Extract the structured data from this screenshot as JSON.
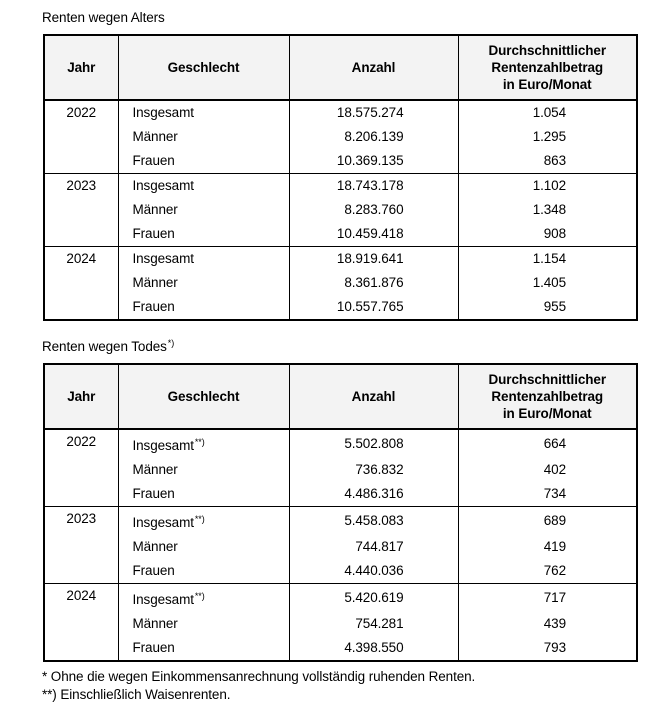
{
  "tables": [
    {
      "title": "Renten wegen Alters",
      "title_marker": "",
      "headers": {
        "jahr": "Jahr",
        "geschlecht": "Geschlecht",
        "anzahl": "Anzahl",
        "betrag": "Durchschnittlicher\nRentenzahlbetrag\nin Euro/Monat"
      },
      "groups": [
        {
          "jahr": "2022",
          "rows": [
            {
              "geschlecht": "Insgesamt",
              "marker": "",
              "anzahl": "18.575.274",
              "betrag": "1.054"
            },
            {
              "geschlecht": "Männer",
              "marker": "",
              "anzahl": "8.206.139",
              "betrag": "1.295"
            },
            {
              "geschlecht": "Frauen",
              "marker": "",
              "anzahl": "10.369.135",
              "betrag": "863"
            }
          ]
        },
        {
          "jahr": "2023",
          "rows": [
            {
              "geschlecht": "Insgesamt",
              "marker": "",
              "anzahl": "18.743.178",
              "betrag": "1.102"
            },
            {
              "geschlecht": "Männer",
              "marker": "",
              "anzahl": "8.283.760",
              "betrag": "1.348"
            },
            {
              "geschlecht": "Frauen",
              "marker": "",
              "anzahl": "10.459.418",
              "betrag": "908"
            }
          ]
        },
        {
          "jahr": "2024",
          "rows": [
            {
              "geschlecht": "Insgesamt",
              "marker": "",
              "anzahl": "18.919.641",
              "betrag": "1.154"
            },
            {
              "geschlecht": "Männer",
              "marker": "",
              "anzahl": "8.361.876",
              "betrag": "1.405"
            },
            {
              "geschlecht": "Frauen",
              "marker": "",
              "anzahl": "10.557.765",
              "betrag": "955"
            }
          ]
        }
      ]
    },
    {
      "title": "Renten wegen Todes",
      "title_marker": "*)",
      "headers": {
        "jahr": "Jahr",
        "geschlecht": "Geschlecht",
        "anzahl": "Anzahl",
        "betrag": "Durchschnittlicher\nRentenzahlbetrag\nin Euro/Monat"
      },
      "groups": [
        {
          "jahr": "2022",
          "rows": [
            {
              "geschlecht": "Insgesamt",
              "marker": "**)",
              "anzahl": "5.502.808",
              "betrag": "664"
            },
            {
              "geschlecht": "Männer",
              "marker": "",
              "anzahl": "736.832",
              "betrag": "402"
            },
            {
              "geschlecht": "Frauen",
              "marker": "",
              "anzahl": "4.486.316",
              "betrag": "734"
            }
          ]
        },
        {
          "jahr": "2023",
          "rows": [
            {
              "geschlecht": "Insgesamt",
              "marker": "**)",
              "anzahl": "5.458.083",
              "betrag": "689"
            },
            {
              "geschlecht": "Männer",
              "marker": "",
              "anzahl": "744.817",
              "betrag": "419"
            },
            {
              "geschlecht": "Frauen",
              "marker": "",
              "anzahl": "4.440.036",
              "betrag": "762"
            }
          ]
        },
        {
          "jahr": "2024",
          "rows": [
            {
              "geschlecht": "Insgesamt",
              "marker": "**)",
              "anzahl": "5.420.619",
              "betrag": "717"
            },
            {
              "geschlecht": "Männer",
              "marker": "",
              "anzahl": "754.281",
              "betrag": "439"
            },
            {
              "geschlecht": "Frauen",
              "marker": "",
              "anzahl": "4.398.550",
              "betrag": "793"
            }
          ]
        }
      ]
    }
  ],
  "footnotes": [
    "* Ohne die wegen Einkommensanrechnung vollständig ruhenden Renten.",
    "**) Einschließlich Waisenrenten."
  ],
  "colors": {
    "header_background": "#f3f3f3",
    "border": "#000000",
    "text": "#000000",
    "page_background": "#ffffff"
  }
}
